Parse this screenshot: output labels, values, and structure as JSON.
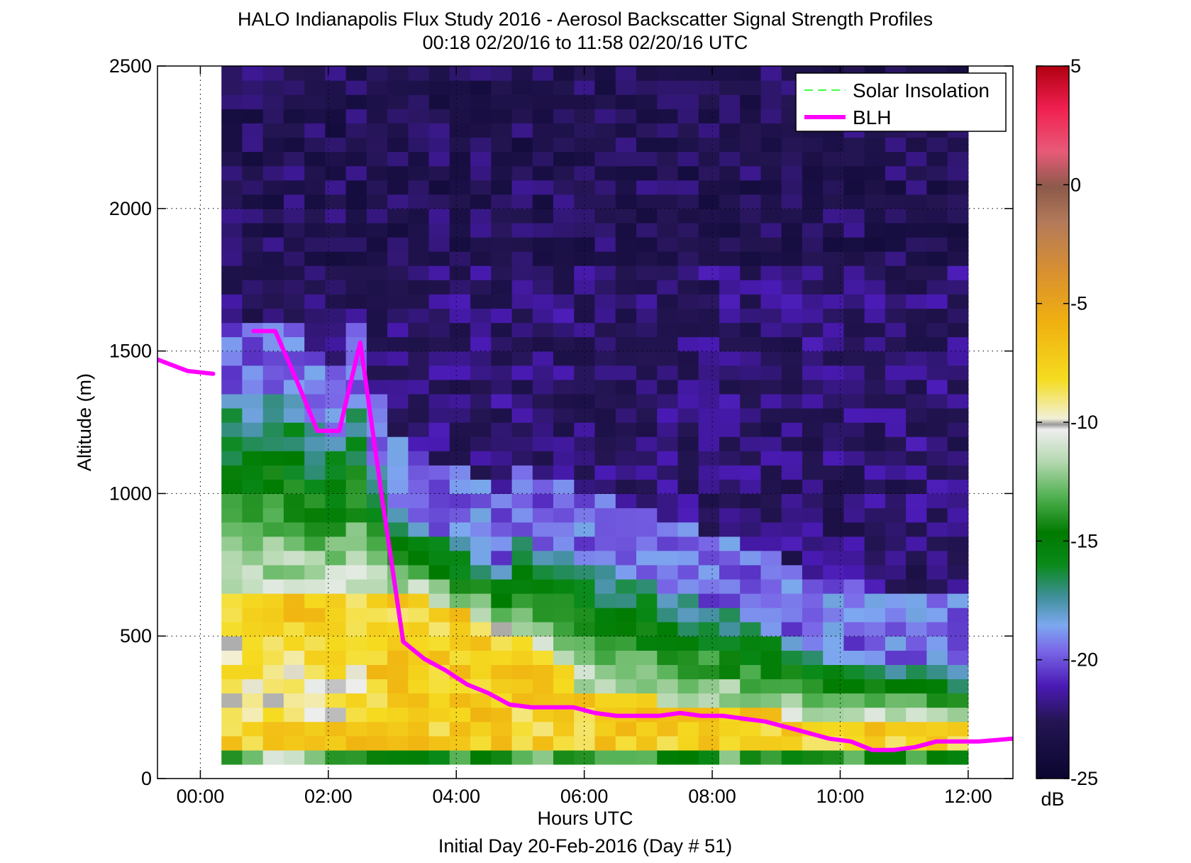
{
  "chart_data": {
    "type": "heatmap",
    "title": "HALO Indianapolis Flux Study 2016 - Aerosol Backscatter Signal Strength Profiles",
    "subtitle": "00:18 02/20/16 to 11:58 02/20/16  UTC",
    "xlabel": "Hours UTC",
    "xlabel2": "Initial Day 20-Feb-2016 (Day # 51)",
    "ylabel": "Altitude (m)",
    "xlim": [
      -0.67,
      12.7
    ],
    "ylim": [
      0,
      2500
    ],
    "x_ticks": [
      0,
      2,
      4,
      6,
      8,
      10,
      12
    ],
    "x_tick_labels": [
      "00:00",
      "02:00",
      "04:00",
      "06:00",
      "08:00",
      "10:00",
      "12:00"
    ],
    "y_ticks": [
      0,
      500,
      1000,
      1500,
      2000,
      2500
    ],
    "y_tick_labels": [
      "0",
      "500",
      "1000",
      "1500",
      "2000",
      "2500"
    ],
    "grid": "dotted",
    "colorbar": {
      "range": [
        -25,
        5
      ],
      "ticks": [
        5,
        0,
        -5,
        -10,
        -15,
        -20,
        -25
      ],
      "tick_labels": [
        "5",
        "0",
        "-5",
        "-10",
        "-15",
        "-20",
        "-25"
      ],
      "unit": "dB"
    },
    "heatmap": {
      "x_start": 0.33,
      "x_end": 12.0,
      "y_start": 50,
      "y_step": 50,
      "note": "values in dB, rows from 50 m upward; columns computed by script"
    },
    "legend": {
      "placement": "top-right",
      "entries": [
        "Solar Insolation",
        "BLH"
      ]
    },
    "series": [
      {
        "name": "BLH",
        "color": "#ff00ff",
        "x": [
          -0.67,
          -0.2,
          0.2,
          0.5,
          0.83,
          1.17,
          1.5,
          1.83,
          2.17,
          2.5,
          2.83,
          3.17,
          3.5,
          3.83,
          4.17,
          4.5,
          4.83,
          5.17,
          5.5,
          5.83,
          6.17,
          6.5,
          6.83,
          7.17,
          7.5,
          7.83,
          8.17,
          8.5,
          8.83,
          9.17,
          9.5,
          9.83,
          10.17,
          10.5,
          10.83,
          11.17,
          11.5,
          11.83,
          12.17,
          12.7
        ],
        "y": [
          1470,
          1430,
          1420,
          null,
          1570,
          1570,
          1400,
          1220,
          1220,
          1530,
          1000,
          480,
          420,
          380,
          330,
          300,
          260,
          250,
          250,
          250,
          230,
          220,
          220,
          220,
          230,
          220,
          220,
          210,
          200,
          180,
          160,
          140,
          130,
          100,
          100,
          110,
          130,
          130,
          130,
          140
        ]
      },
      {
        "name": "Solar Insolation",
        "color": "#00ff00",
        "x": [],
        "y": []
      }
    ]
  }
}
